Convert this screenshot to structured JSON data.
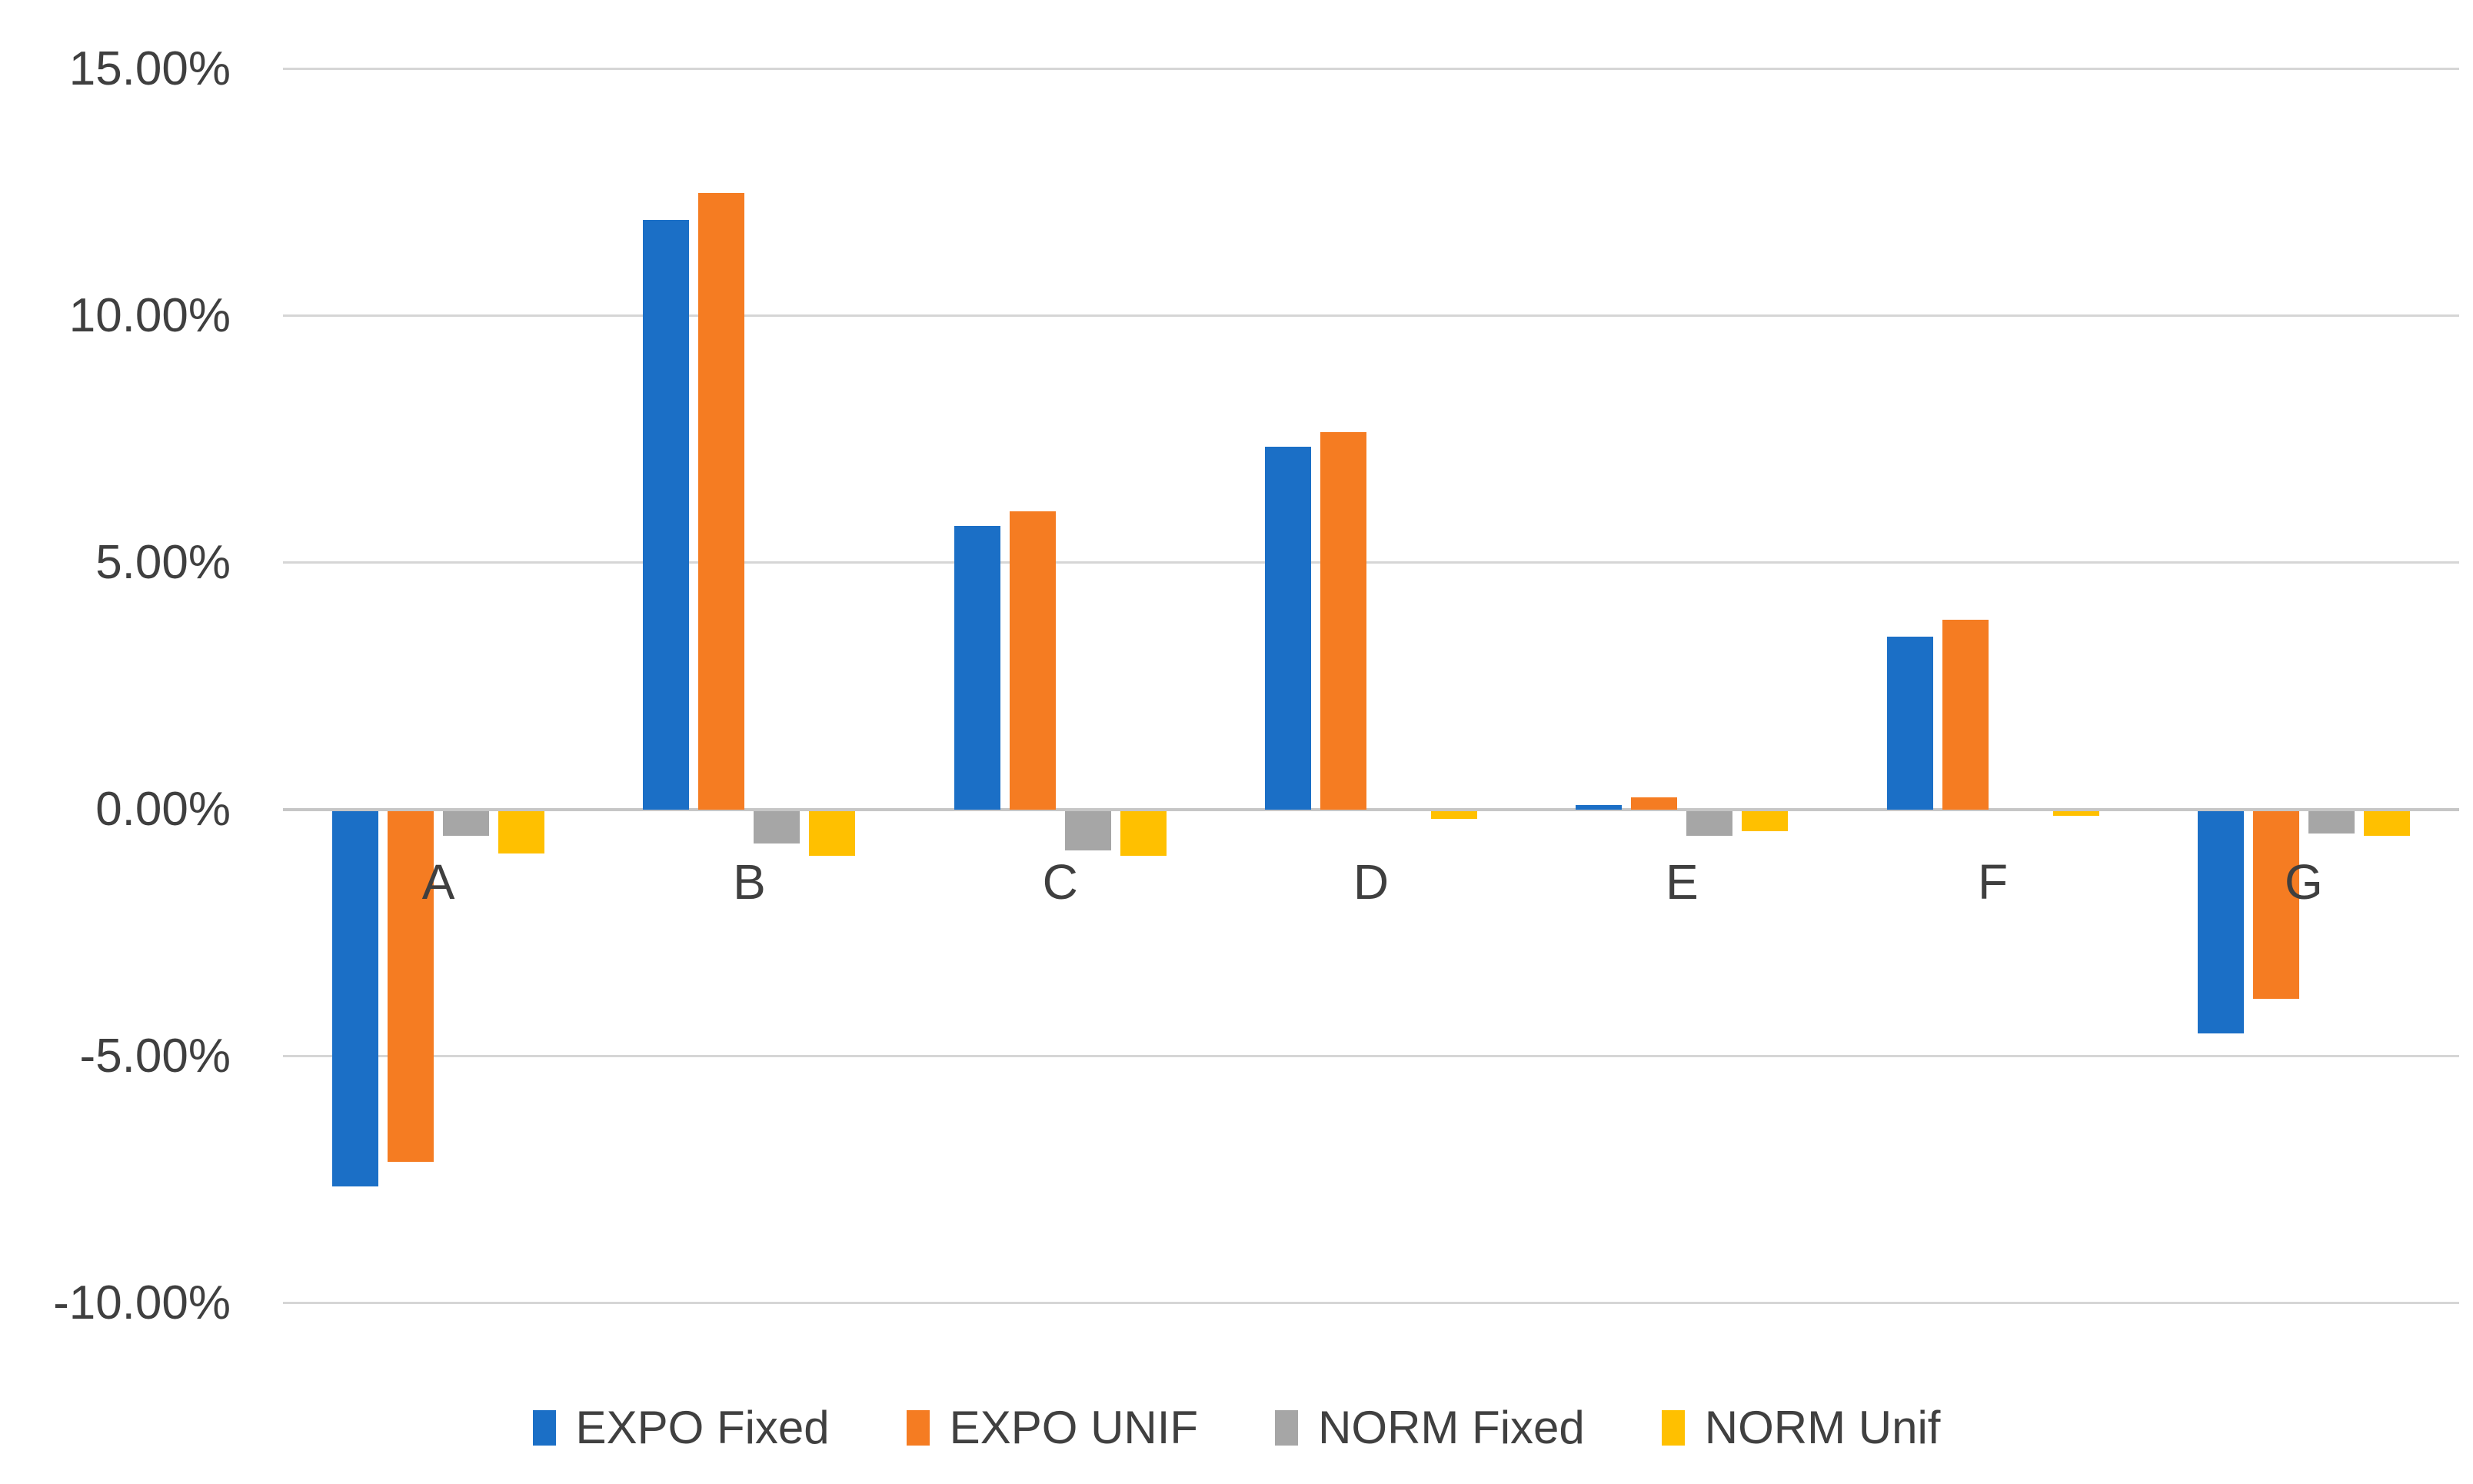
{
  "chart_data": {
    "type": "bar",
    "title": "",
    "xlabel": "",
    "ylabel": "",
    "categories": [
      "A",
      "B",
      "C",
      "D",
      "E",
      "F",
      "G"
    ],
    "series": [
      {
        "name": "EXPO Fixed",
        "color": "#1B6FC6",
        "values": [
          -7.6,
          11.95,
          5.75,
          7.35,
          0.1,
          3.5,
          -4.5
        ]
      },
      {
        "name": "EXPO UNIF",
        "color": "#F57C22",
        "values": [
          -7.1,
          12.5,
          6.05,
          7.65,
          0.25,
          3.85,
          -3.8
        ]
      },
      {
        "name": "NORM Fixed",
        "color": "#A6A6A6",
        "values": [
          -0.5,
          -0.65,
          -0.8,
          0.0,
          -0.5,
          0.0,
          -0.45
        ]
      },
      {
        "name": "NORM Unif",
        "color": "#FFC000",
        "values": [
          -0.85,
          -0.9,
          -0.9,
          -0.15,
          -0.4,
          -0.1,
          -0.5
        ]
      }
    ],
    "yticks": [
      15,
      10,
      5,
      0,
      -5,
      -10
    ],
    "ytick_labels": [
      "15.00%",
      "10.00%",
      "5.00%",
      "0.00%",
      "-5.00%",
      "-10.00%"
    ],
    "ylim": [
      -10,
      15
    ],
    "grid": "horizontal",
    "gridline_color": "#d6d6d6",
    "zero_line_color": "#c6c6c6",
    "axis_text_color": "#3f3f3f",
    "legend_position": "bottom"
  }
}
